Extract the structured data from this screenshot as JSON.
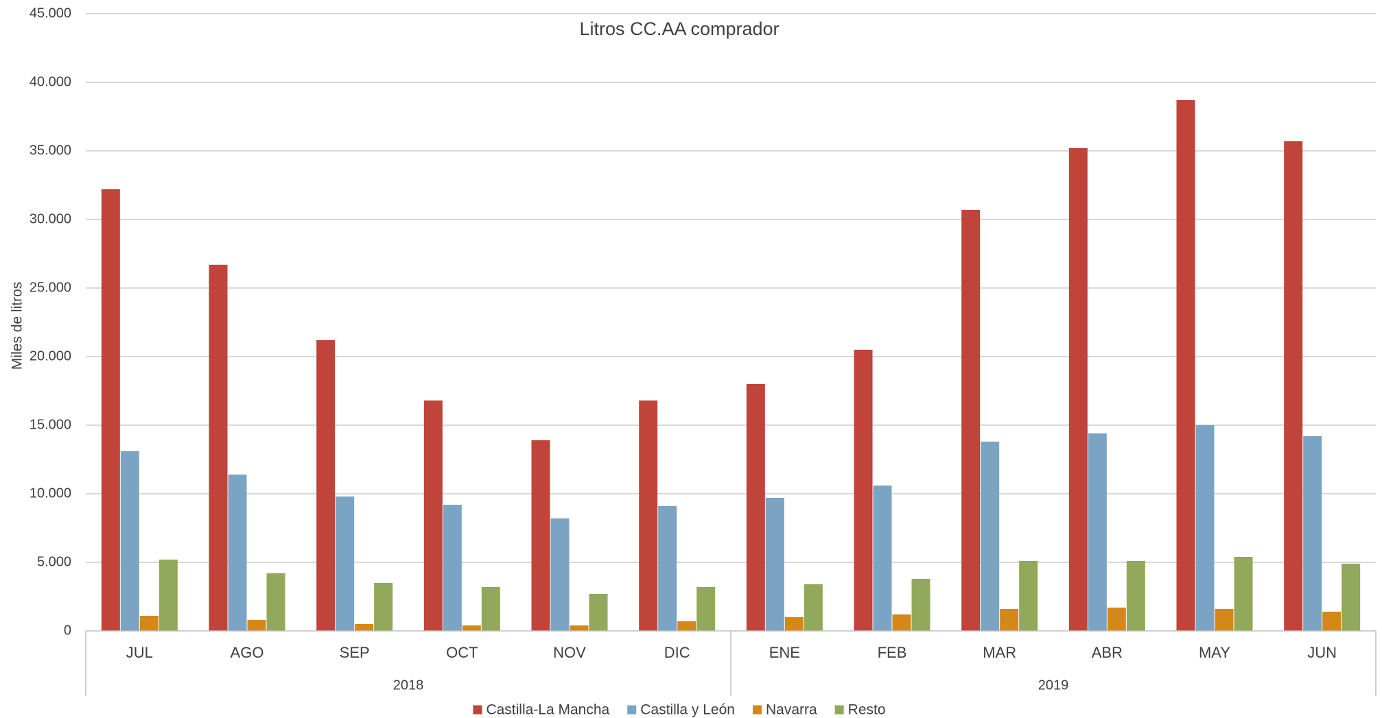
{
  "chart_data": {
    "type": "bar",
    "title": "Litros CC.AA comprador",
    "ylabel": "Miles de litros",
    "xlabel": "",
    "ylim": [
      0,
      45000
    ],
    "yticks": [
      0,
      5000,
      10000,
      15000,
      20000,
      25000,
      30000,
      35000,
      40000,
      45000
    ],
    "ytick_labels": [
      "0",
      "5.000",
      "10.000",
      "15.000",
      "20.000",
      "25.000",
      "30.000",
      "35.000",
      "40.000",
      "45.000"
    ],
    "categories": [
      "JUL",
      "AGO",
      "SEP",
      "OCT",
      "NOV",
      "DIC",
      "ENE",
      "FEB",
      "MAR",
      "ABR",
      "MAY",
      "JUN"
    ],
    "category_groups": [
      {
        "label": "2018",
        "count": 6
      },
      {
        "label": "2019",
        "count": 6
      }
    ],
    "grid": true,
    "legend_position": "bottom",
    "series": [
      {
        "name": "Castilla-La Mancha",
        "color": "#C0443A",
        "values": [
          32200,
          26700,
          21200,
          16800,
          13900,
          16800,
          18000,
          20500,
          30700,
          35200,
          38700,
          35700
        ]
      },
      {
        "name": "Castilla y León",
        "color": "#7BA3C4",
        "values": [
          13100,
          11400,
          9800,
          9200,
          8200,
          9100,
          9700,
          10600,
          13800,
          14400,
          15000,
          14200
        ]
      },
      {
        "name": "Navarra",
        "color": "#D4881A",
        "values": [
          1100,
          800,
          500,
          400,
          400,
          700,
          1000,
          1200,
          1600,
          1700,
          1600,
          1400
        ]
      },
      {
        "name": "Resto",
        "color": "#92A85A",
        "values": [
          5200,
          4200,
          3500,
          3200,
          2700,
          3200,
          3400,
          3800,
          5100,
          5100,
          5400,
          4900
        ]
      }
    ]
  }
}
